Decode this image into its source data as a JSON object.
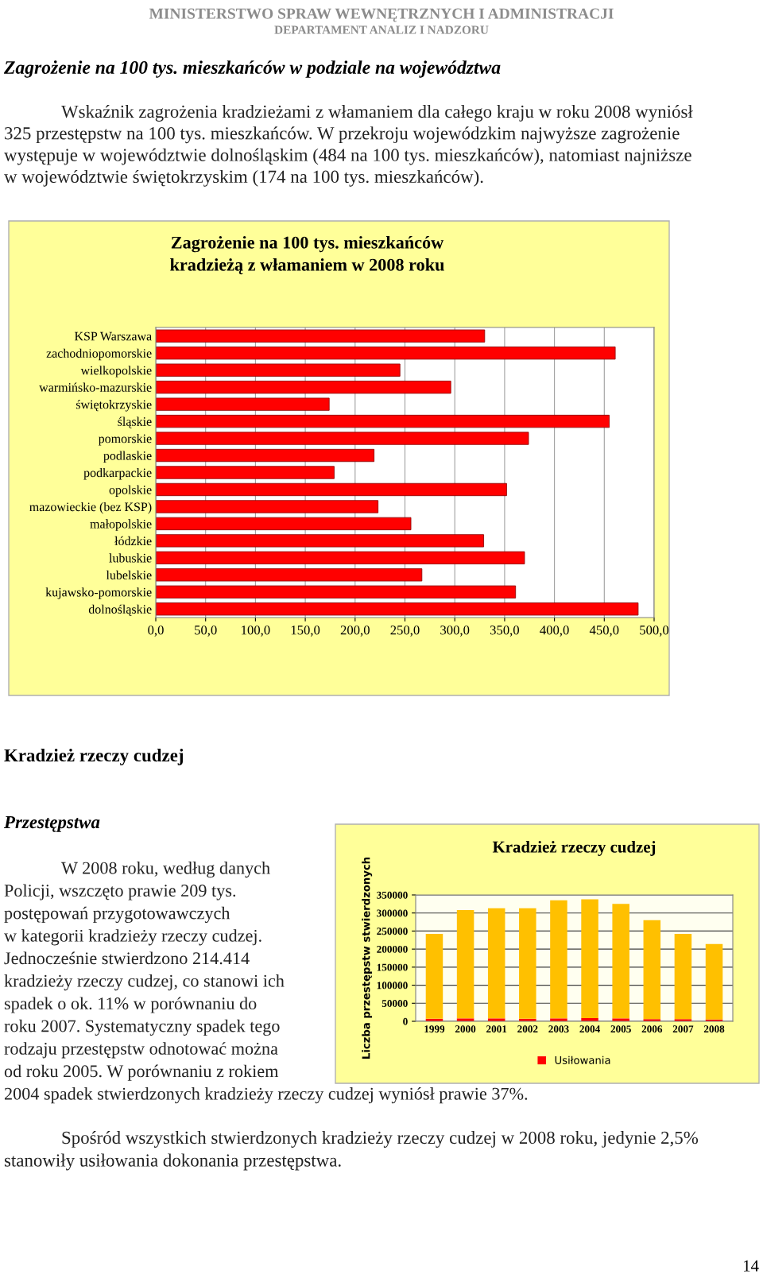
{
  "chart_data": [
    {
      "type": "bar",
      "orientation": "horizontal",
      "title": "Zagrożenie na 100 tys. mieszkańców\nkradzieżą z włamaniem w 2008 roku",
      "categories": [
        "KSP Warszawa",
        "zachodniopomorskie",
        "wielkopolskie",
        "warmińsko-mazurskie",
        "świętokrzyskie",
        "śląskie",
        "pomorskie",
        "podlaskie",
        "podkarpackie",
        "opolskie",
        "mazowieckie (bez KSP)",
        "małopolskie",
        "łódzkie",
        "lubuskie",
        "lubelskie",
        "kujawsko-pomorskie",
        "dolnośląskie"
      ],
      "values": [
        330,
        461,
        245,
        296,
        174,
        455,
        374,
        219,
        179,
        352,
        223,
        256,
        329,
        370,
        267,
        361,
        484
      ],
      "color": "#ff0000",
      "xlim": [
        0,
        500
      ],
      "xticks": [
        {
          "value": 0,
          "label": "0,0"
        },
        {
          "value": 50,
          "label": "50,0"
        },
        {
          "value": 100,
          "label": "100,0"
        },
        {
          "value": 150,
          "label": "150,0"
        },
        {
          "value": 200,
          "label": "200,0"
        },
        {
          "value": 250,
          "label": "250,0"
        },
        {
          "value": 300,
          "label": "300,0"
        },
        {
          "value": 350,
          "label": "350,0"
        },
        {
          "value": 400,
          "label": "400,0"
        },
        {
          "value": 450,
          "label": "450,0"
        },
        {
          "value": 500,
          "label": "500,0"
        }
      ],
      "grid": "x",
      "annotations": [
        "MINISTERSTWO SPRAW WEWNĘTRZNYCH I ADMINISTRACJI",
        "DEPARTAMENT ANALIZ I NADZORU",
        "Zagrożenie na 100 tys. mieszkańców w podziale na województwa",
        "Wskaźnik zagrożenia kradzieżami z włamaniem dla całego kraju w roku 2008 wyniósł\n325 przestępstw na 100 tys. mieszkańców. W przekroju wojewódzkim najwyższe zagrożenie\nwystępuje w województwie dolnośląskim (484 na 100 tys. mieszkańców), natomiast najniższe\nw województwie świętokrzyskim (174 na 100 tys. mieszkańców)."
      ]
    },
    {
      "type": "bar",
      "stacked": true,
      "title": "Kradzież rzeczy cudzej",
      "ylabel": "Liczba przestępstw stwierdzonych",
      "categories": [
        "1999",
        "2000",
        "2001",
        "2002",
        "2003",
        "2004",
        "2005",
        "2006",
        "2007",
        "2008"
      ],
      "series": [
        {
          "name": "Usiłowania",
          "color": "#ff0000",
          "values": [
            7000,
            8000,
            8000,
            7000,
            8000,
            9000,
            8000,
            6000,
            6000,
            5000
          ]
        },
        {
          "color": "#ffc000",
          "values": [
            235000,
            300000,
            305000,
            306000,
            327000,
            329000,
            317000,
            274000,
            236000,
            209000
          ]
        }
      ],
      "ylim": [
        0,
        350000
      ],
      "yticks": [
        0,
        50000,
        100000,
        150000,
        200000,
        250000,
        300000,
        350000
      ],
      "grid": "y",
      "legend": "bottom",
      "annotations": [
        "Kradzież rzeczy cudzej",
        "Przestępstwa",
        "W 2008 roku, według danych\nPolicji, wszczęto prawie 209 tys.\npostępowań przygotowawczych\nw kategorii kradzieży rzeczy cudzej.\nJednocześnie stwierdzono 214.414\nkradzieży rzeczy cudzej, co stanowi ich\nspadek o ok. 11% w porównaniu do\nroku 2007. Systematyczny spadek tego\nrodzaju przestępstw odnotować można\nod roku 2005. W porównaniu z rokiem\n2004 spadek stwierdzonych kradzieży rzeczy cudzej wyniósł prawie 37%.",
        "Spośród wszystkich stwierdzonych kradzieży rzeczy cudzej w 2008 roku, jedynie 2,5%\nstanowiły usiłowania dokonania przestępstwa.",
        "14"
      ]
    }
  ]
}
